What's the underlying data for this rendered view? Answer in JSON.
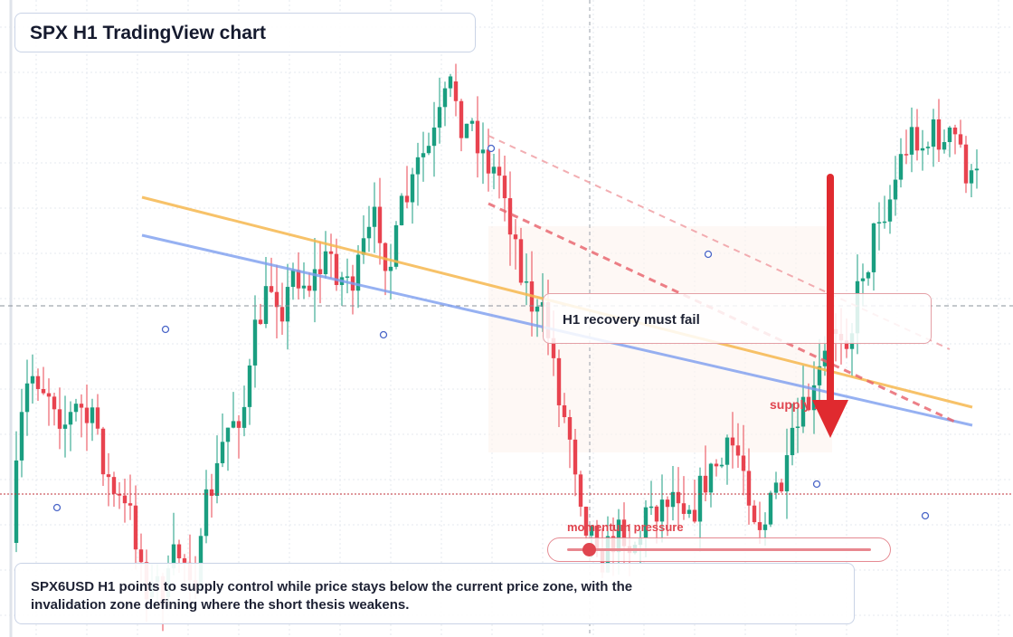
{
  "title": "SPX H1 TradingView chart",
  "annotation": "H1 recovery must fail",
  "supply_label": "supply zone",
  "momentum_label": "momentum pressure",
  "summary": [
    "SPX6USD H1 points to supply control while price stays below the current price zone, with the",
    "invalidation zone defining where the short thesis weakens."
  ]
}
